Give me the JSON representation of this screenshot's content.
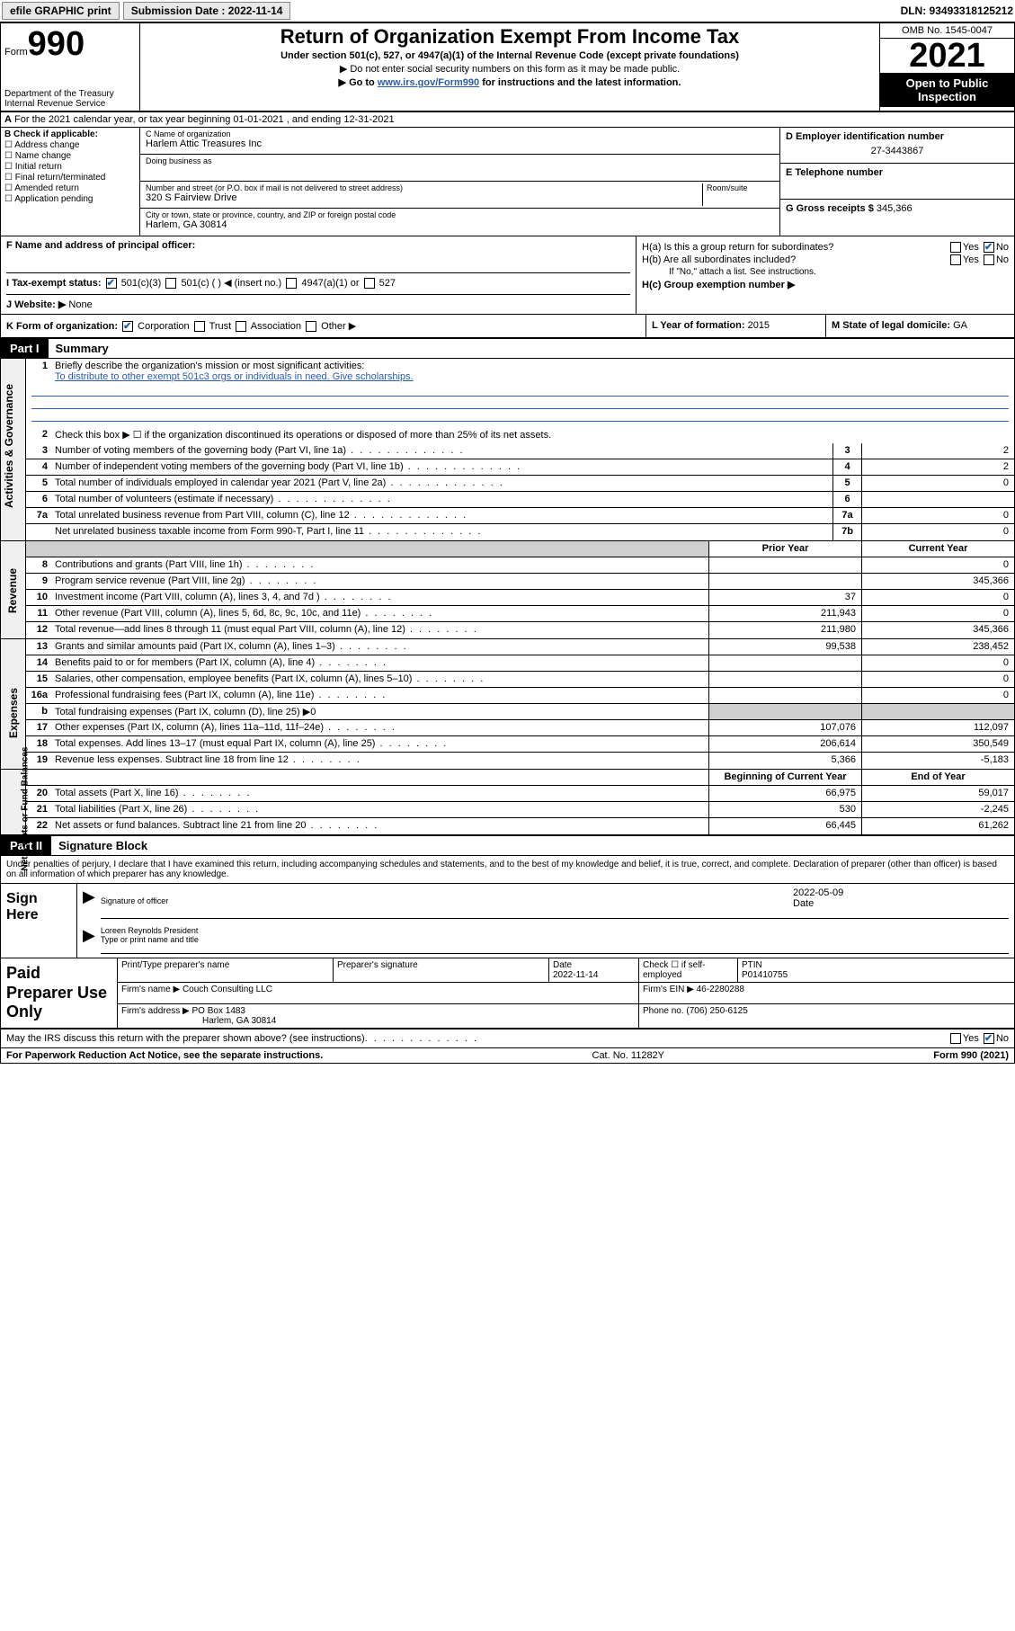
{
  "toolbar": {
    "efile_label": "efile GRAPHIC print",
    "submission_label": "Submission Date :",
    "submission_date": "2022-11-14",
    "dln_label": "DLN: 93493318125212"
  },
  "header": {
    "form_word": "Form",
    "form_number": "990",
    "dept": "Department of the Treasury",
    "irs": "Internal Revenue Service",
    "title": "Return of Organization Exempt From Income Tax",
    "subtitle": "Under section 501(c), 527, or 4947(a)(1) of the Internal Revenue Code (except private foundations)",
    "arrow1": "▶ Do not enter social security numbers on this form as it may be made public.",
    "arrow2_pre": "▶ Go to ",
    "arrow2_link": "www.irs.gov/Form990",
    "arrow2_post": " for instructions and the latest information.",
    "omb": "OMB No. 1545-0047",
    "year": "2021",
    "open_public": "Open to Public Inspection"
  },
  "row_a": {
    "label": "A",
    "text": "For the 2021 calendar year, or tax year beginning 01-01-2021   , and ending 12-31-2021"
  },
  "section_b": {
    "label": "B Check if applicable:",
    "opts": [
      "Address change",
      "Name change",
      "Initial return",
      "Final return/terminated",
      "Amended return",
      "Application pending"
    ]
  },
  "section_c": {
    "name_label": "C Name of organization",
    "name": "Harlem Attic Treasures Inc",
    "dba_label": "Doing business as",
    "dba": "",
    "addr_label": "Number and street (or P.O. box if mail is not delivered to street address)",
    "room_label": "Room/suite",
    "addr": "320 S Fairview Drive",
    "city_label": "City or town, state or province, country, and ZIP or foreign postal code",
    "city": "Harlem, GA  30814"
  },
  "section_d": {
    "label": "D Employer identification number",
    "value": "27-3443867"
  },
  "section_e": {
    "label": "E Telephone number",
    "value": ""
  },
  "section_g": {
    "label": "G Gross receipts $",
    "value": "345,366"
  },
  "section_f": {
    "label": "F Name and address of principal officer:",
    "value": ""
  },
  "section_h": {
    "ha": "H(a)  Is this a group return for subordinates?",
    "hb": "H(b)  Are all subordinates included?",
    "hb_note": "If \"No,\" attach a list. See instructions.",
    "hc": "H(c)  Group exemption number ▶",
    "yes": "Yes",
    "no": "No"
  },
  "row_i": {
    "label": "I   Tax-exempt status:",
    "opts": [
      "501(c)(3)",
      "501(c) (  ) ◀ (insert no.)",
      "4947(a)(1) or",
      "527"
    ]
  },
  "row_j": {
    "label": "J   Website: ▶",
    "value": "None"
  },
  "row_k": {
    "label": "K Form of organization:",
    "opts": [
      "Corporation",
      "Trust",
      "Association",
      "Other ▶"
    ],
    "l_label": "L Year of formation:",
    "l_value": "2015",
    "m_label": "M State of legal domicile:",
    "m_value": "GA"
  },
  "part1": {
    "num": "Part I",
    "title": "Summary"
  },
  "summary": {
    "tabs": [
      "Activities & Governance",
      "Revenue",
      "Expenses",
      "Net Assets or Fund Balances"
    ],
    "line1_label": "Briefly describe the organization's mission or most significant activities:",
    "line1_text": "To distribute to other exempt 501c3 orgs or individuals in need. Give scholarships.",
    "line2": "Check this box ▶ ☐  if the organization discontinued its operations or disposed of more than 25% of its net assets.",
    "col_prior": "Prior Year",
    "col_current": "Current Year",
    "col_beg": "Beginning of Current Year",
    "col_end": "End of Year",
    "rows_gov": [
      {
        "n": "3",
        "t": "Number of voting members of the governing body (Part VI, line 1a)",
        "nn": "3",
        "v": "2"
      },
      {
        "n": "4",
        "t": "Number of independent voting members of the governing body (Part VI, line 1b)",
        "nn": "4",
        "v": "2"
      },
      {
        "n": "5",
        "t": "Total number of individuals employed in calendar year 2021 (Part V, line 2a)",
        "nn": "5",
        "v": "0"
      },
      {
        "n": "6",
        "t": "Total number of volunteers (estimate if necessary)",
        "nn": "6",
        "v": ""
      },
      {
        "n": "7a",
        "t": "Total unrelated business revenue from Part VIII, column (C), line 12",
        "nn": "7a",
        "v": "0"
      },
      {
        "n": "",
        "t": "Net unrelated business taxable income from Form 990-T, Part I, line 11",
        "nn": "7b",
        "v": "0"
      }
    ],
    "rows_rev": [
      {
        "n": "8",
        "t": "Contributions and grants (Part VIII, line 1h)",
        "p": "",
        "c": "0"
      },
      {
        "n": "9",
        "t": "Program service revenue (Part VIII, line 2g)",
        "p": "",
        "c": "345,366"
      },
      {
        "n": "10",
        "t": "Investment income (Part VIII, column (A), lines 3, 4, and 7d )",
        "p": "37",
        "c": "0"
      },
      {
        "n": "11",
        "t": "Other revenue (Part VIII, column (A), lines 5, 6d, 8c, 9c, 10c, and 11e)",
        "p": "211,943",
        "c": "0"
      },
      {
        "n": "12",
        "t": "Total revenue—add lines 8 through 11 (must equal Part VIII, column (A), line 12)",
        "p": "211,980",
        "c": "345,366"
      }
    ],
    "rows_exp": [
      {
        "n": "13",
        "t": "Grants and similar amounts paid (Part IX, column (A), lines 1–3)",
        "p": "99,538",
        "c": "238,452"
      },
      {
        "n": "14",
        "t": "Benefits paid to or for members (Part IX, column (A), line 4)",
        "p": "",
        "c": "0"
      },
      {
        "n": "15",
        "t": "Salaries, other compensation, employee benefits (Part IX, column (A), lines 5–10)",
        "p": "",
        "c": "0"
      },
      {
        "n": "16a",
        "t": "Professional fundraising fees (Part IX, column (A), line 11e)",
        "p": "",
        "c": "0"
      },
      {
        "n": "b",
        "t": "Total fundraising expenses (Part IX, column (D), line 25) ▶0",
        "p": "",
        "c": "",
        "shaded": true
      },
      {
        "n": "17",
        "t": "Other expenses (Part IX, column (A), lines 11a–11d, 11f–24e)",
        "p": "107,076",
        "c": "112,097"
      },
      {
        "n": "18",
        "t": "Total expenses. Add lines 13–17 (must equal Part IX, column (A), line 25)",
        "p": "206,614",
        "c": "350,549"
      },
      {
        "n": "19",
        "t": "Revenue less expenses. Subtract line 18 from line 12",
        "p": "5,366",
        "c": "-5,183"
      }
    ],
    "rows_net": [
      {
        "n": "20",
        "t": "Total assets (Part X, line 16)",
        "p": "66,975",
        "c": "59,017"
      },
      {
        "n": "21",
        "t": "Total liabilities (Part X, line 26)",
        "p": "530",
        "c": "-2,245"
      },
      {
        "n": "22",
        "t": "Net assets or fund balances. Subtract line 21 from line 20",
        "p": "66,445",
        "c": "61,262"
      }
    ]
  },
  "part2": {
    "num": "Part II",
    "title": "Signature Block"
  },
  "sig": {
    "decl": "Under penalties of perjury, I declare that I have examined this return, including accompanying schedules and statements, and to the best of my knowledge and belief, it is true, correct, and complete. Declaration of preparer (other than officer) is based on all information of which preparer has any knowledge.",
    "sign_here": "Sign Here",
    "sig_officer": "Signature of officer",
    "date_label": "Date",
    "date_value": "2022-05-09",
    "name_title": "Loreen Reynolds  President",
    "type_name": "Type or print name and title"
  },
  "paid": {
    "label": "Paid Preparer Use Only",
    "h1": "Print/Type preparer's name",
    "h2": "Preparer's signature",
    "h3": "Date",
    "h3v": "2022-11-14",
    "h4": "Check ☐ if self-employed",
    "h5": "PTIN",
    "h5v": "P01410755",
    "firm_name_label": "Firm's name    ▶",
    "firm_name": "Couch Consulting LLC",
    "firm_ein_label": "Firm's EIN ▶",
    "firm_ein": "46-2280288",
    "firm_addr_label": "Firm's address ▶",
    "firm_addr1": "PO Box 1483",
    "firm_addr2": "Harlem, GA  30814",
    "phone_label": "Phone no.",
    "phone": "(706) 250-6125"
  },
  "footer": {
    "discuss": "May the IRS discuss this return with the preparer shown above? (see instructions)",
    "yes": "Yes",
    "no": "No",
    "paperwork": "For Paperwork Reduction Act Notice, see the separate instructions.",
    "cat": "Cat. No. 11282Y",
    "form": "Form 990 (2021)"
  }
}
